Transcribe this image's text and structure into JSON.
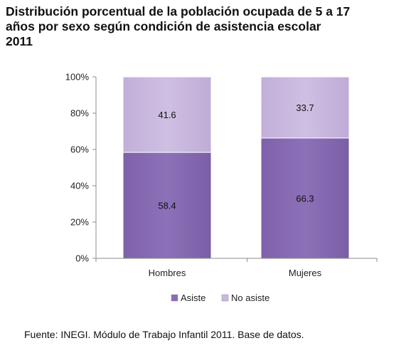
{
  "title_lines": [
    "Distribución porcentual de la población ocupada de 5 a 17",
    "años por sexo según condición de asistencia escolar",
    "2011"
  ],
  "source": "Fuente: INEGI. Módulo de Trabajo Infantil 2011. Base de datos.",
  "colors": {
    "asiste": "#8a6db4",
    "no_asiste": "#c9b7df",
    "axis": "#8c8c8c"
  },
  "chart_data": {
    "type": "bar",
    "stacked": true,
    "categories": [
      "Hombres",
      "Mujeres"
    ],
    "series": [
      {
        "name": "Asiste",
        "values": [
          58.4,
          66.3
        ]
      },
      {
        "name": "No asiste",
        "values": [
          41.6,
          33.7
        ]
      }
    ],
    "value_labels": [
      [
        "58.4",
        "66.3"
      ],
      [
        "41.6",
        "33.7"
      ]
    ],
    "y_ticks": [
      0,
      20,
      40,
      60,
      80,
      100
    ],
    "y_tick_labels": [
      "0%",
      "20%",
      "40%",
      "60%",
      "80%",
      "100%"
    ],
    "ylim": [
      0,
      100
    ],
    "grid": false,
    "legend_position": "bottom"
  }
}
